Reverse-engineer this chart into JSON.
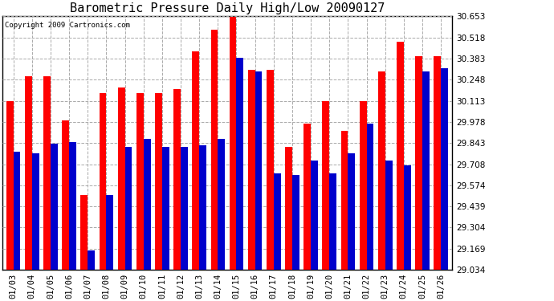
{
  "title": "Barometric Pressure Daily High/Low 20090127",
  "copyright": "Copyright 2009 Cartronics.com",
  "dates": [
    "01/03",
    "01/04",
    "01/05",
    "01/06",
    "01/07",
    "01/08",
    "01/09",
    "01/10",
    "01/11",
    "01/12",
    "01/13",
    "01/14",
    "01/15",
    "01/16",
    "01/17",
    "01/18",
    "01/19",
    "01/20",
    "01/21",
    "01/22",
    "01/23",
    "01/24",
    "01/25",
    "01/26"
  ],
  "highs": [
    30.11,
    30.27,
    30.27,
    29.99,
    29.51,
    30.16,
    30.2,
    30.16,
    30.16,
    30.19,
    30.43,
    30.57,
    30.65,
    30.31,
    30.31,
    29.82,
    29.97,
    30.11,
    29.92,
    30.11,
    30.3,
    30.49,
    30.4,
    30.4
  ],
  "lows": [
    29.79,
    29.78,
    29.84,
    29.85,
    29.16,
    29.51,
    29.82,
    29.87,
    29.82,
    29.82,
    29.83,
    29.87,
    30.39,
    30.3,
    29.65,
    29.64,
    29.73,
    29.65,
    29.78,
    29.97,
    29.73,
    29.7,
    30.3,
    30.32
  ],
  "ymin": 29.034,
  "ymax": 30.653,
  "yticks": [
    29.034,
    29.169,
    29.304,
    29.439,
    29.574,
    29.708,
    29.843,
    29.978,
    30.113,
    30.248,
    30.383,
    30.518,
    30.653
  ],
  "bar_width": 0.38,
  "high_color": "#ff0000",
  "low_color": "#0000cc",
  "bg_color": "#ffffff",
  "grid_color": "#aaaaaa",
  "title_fontsize": 11,
  "copyright_fontsize": 6.5,
  "tick_fontsize": 7.5
}
